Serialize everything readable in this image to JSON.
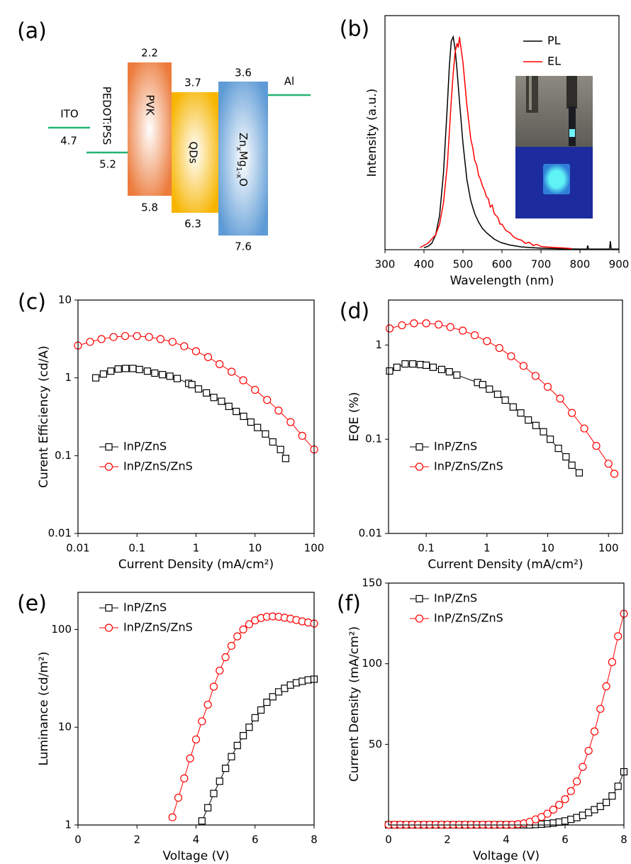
{
  "chart_data": [
    {
      "type": "energy-diagram",
      "panel_label": "(a)",
      "line_color": "#22b573",
      "layers": [
        {
          "name": "ITO",
          "level": 4.7
        },
        {
          "name": "PEDOT:PSS",
          "level": 5.2
        },
        {
          "name": "PVK",
          "top": 2.2,
          "bottom": 5.8,
          "color": "#ec7b3c"
        },
        {
          "name": "QDs",
          "top": 3.7,
          "bottom": 6.3,
          "color": "#f7b500"
        },
        {
          "name": [
            "Zn",
            "x",
            "Mg",
            "1-x",
            "O"
          ],
          "top": 3.6,
          "bottom": 7.6,
          "color": "#5e9bd6"
        },
        {
          "name": "Al"
        }
      ]
    },
    {
      "type": "line",
      "panel_label": "(b)",
      "xlabel": "Wavelength (nm)",
      "ylabel": "Intensity (a.u.)",
      "xlim": [
        300,
        900
      ],
      "xticks": [
        300,
        400,
        500,
        600,
        700,
        800,
        900
      ],
      "ylim": [
        0,
        1.1
      ],
      "legend": "upper right",
      "series": [
        {
          "name": "PL",
          "color": "#000000",
          "x": [
            400,
            410,
            420,
            430,
            440,
            450,
            460,
            465,
            470,
            475,
            480,
            485,
            490,
            500,
            510,
            520,
            530,
            540,
            550,
            560,
            570,
            580,
            590,
            600,
            620,
            650,
            700,
            750,
            800,
            818,
            820,
            822,
            850,
            876,
            878,
            880,
            882,
            900
          ],
          "values": [
            0.01,
            0.015,
            0.03,
            0.07,
            0.16,
            0.36,
            0.68,
            0.86,
            0.98,
            1.0,
            0.94,
            0.84,
            0.72,
            0.5,
            0.33,
            0.23,
            0.17,
            0.13,
            0.1,
            0.08,
            0.065,
            0.05,
            0.04,
            0.032,
            0.022,
            0.013,
            0.007,
            0.004,
            0.003,
            0.003,
            0.02,
            0.003,
            0.003,
            0.003,
            0.04,
            0.003,
            0.003,
            0.003
          ]
        },
        {
          "name": "EL",
          "color": "#ff0000",
          "x": [
            390,
            400,
            410,
            420,
            430,
            440,
            450,
            460,
            465,
            470,
            475,
            480,
            485,
            488,
            491,
            494,
            497,
            500,
            505,
            510,
            515,
            520,
            525,
            530,
            535,
            540,
            545,
            550,
            555,
            560,
            565,
            570,
            575,
            580,
            585,
            590,
            595,
            600,
            610,
            620,
            630,
            640,
            650,
            660,
            670,
            680,
            690,
            700,
            720,
            740,
            760,
            780
          ],
          "values": [
            0.01,
            0.02,
            0.03,
            0.05,
            0.07,
            0.12,
            0.22,
            0.4,
            0.55,
            0.7,
            0.83,
            0.93,
            0.97,
            0.95,
            1.0,
            0.96,
            0.92,
            0.88,
            0.78,
            0.68,
            0.6,
            0.52,
            0.48,
            0.42,
            0.4,
            0.35,
            0.33,
            0.3,
            0.28,
            0.25,
            0.24,
            0.2,
            0.21,
            0.17,
            0.16,
            0.15,
            0.12,
            0.12,
            0.09,
            0.08,
            0.06,
            0.05,
            0.045,
            0.03,
            0.035,
            0.02,
            0.025,
            0.015,
            0.012,
            0.01,
            0.008,
            0.005
          ]
        }
      ]
    },
    {
      "type": "line",
      "panel_label": "(c)",
      "xlabel": "Current Density (mA/cm²)",
      "ylabel": "Curent Efficiency (cd/A)",
      "xlog": true,
      "ylog": true,
      "xlim": [
        0.01,
        100
      ],
      "xticks": [
        0.01,
        0.1,
        1,
        10,
        100
      ],
      "ylim": [
        0.01,
        10
      ],
      "yticks": [
        0.01,
        0.1,
        1,
        10
      ],
      "legend": "lower left",
      "series": [
        {
          "name": "InP/ZnS",
          "color": "#000000",
          "marker": "square",
          "x": [
            0.02,
            0.027,
            0.036,
            0.048,
            0.064,
            0.085,
            0.11,
            0.15,
            0.2,
            0.27,
            0.36,
            0.48,
            0.75,
            0.85,
            1.1,
            1.5,
            2,
            2.7,
            3.6,
            4.8,
            6.4,
            8.5,
            11,
            15,
            20,
            27,
            33
          ],
          "values": [
            1.0,
            1.12,
            1.22,
            1.3,
            1.32,
            1.32,
            1.28,
            1.22,
            1.15,
            1.1,
            1.05,
            0.98,
            0.85,
            0.82,
            0.72,
            0.64,
            0.56,
            0.5,
            0.43,
            0.37,
            0.32,
            0.27,
            0.23,
            0.19,
            0.15,
            0.12,
            0.092
          ]
        },
        {
          "name": "InP/ZnS/ZnS",
          "color": "#ff0000",
          "marker": "circle",
          "x": [
            0.01,
            0.016,
            0.025,
            0.04,
            0.063,
            0.1,
            0.16,
            0.25,
            0.4,
            0.63,
            1,
            1.6,
            2.5,
            4,
            6.3,
            10,
            16,
            25,
            40,
            63,
            100
          ],
          "values": [
            2.6,
            2.9,
            3.15,
            3.35,
            3.45,
            3.45,
            3.35,
            3.15,
            2.9,
            2.55,
            2.2,
            1.85,
            1.5,
            1.2,
            0.93,
            0.7,
            0.52,
            0.38,
            0.27,
            0.18,
            0.12
          ]
        }
      ]
    },
    {
      "type": "line",
      "panel_label": "(d)",
      "xlabel": "Current Density (mA/cm²)",
      "ylabel": "EQE (%)",
      "xlog": true,
      "ylog": true,
      "xlim": [
        0.024,
        170
      ],
      "xticks": [
        0.1,
        1,
        10,
        100
      ],
      "ylim": [
        0.01,
        3
      ],
      "yticks": [
        0.01,
        0.1,
        1
      ],
      "legend": "lower left",
      "series": [
        {
          "name": "InP/ZnS",
          "color": "#000000",
          "marker": "square",
          "x": [
            0.025,
            0.033,
            0.045,
            0.06,
            0.08,
            0.1,
            0.13,
            0.18,
            0.24,
            0.32,
            0.7,
            0.85,
            1.1,
            1.5,
            2,
            2.7,
            3.6,
            4.8,
            6.4,
            8.5,
            11,
            15,
            20,
            25,
            33
          ],
          "values": [
            0.53,
            0.58,
            0.63,
            0.63,
            0.62,
            0.61,
            0.58,
            0.55,
            0.52,
            0.48,
            0.4,
            0.38,
            0.34,
            0.3,
            0.26,
            0.22,
            0.19,
            0.16,
            0.14,
            0.12,
            0.1,
            0.08,
            0.065,
            0.053,
            0.044
          ]
        },
        {
          "name": "InP/ZnS/ZnS",
          "color": "#ff0000",
          "marker": "circle",
          "x": [
            0.025,
            0.04,
            0.063,
            0.1,
            0.16,
            0.25,
            0.4,
            0.63,
            1,
            1.6,
            2.5,
            4,
            6.3,
            10,
            16,
            25,
            40,
            63,
            100,
            125
          ],
          "values": [
            1.5,
            1.62,
            1.7,
            1.7,
            1.65,
            1.55,
            1.42,
            1.27,
            1.1,
            0.93,
            0.76,
            0.6,
            0.47,
            0.36,
            0.27,
            0.19,
            0.13,
            0.085,
            0.055,
            0.043
          ]
        }
      ]
    },
    {
      "type": "line",
      "panel_label": "(e)",
      "xlabel": "Voltage (V)",
      "ylabel": "Luminance (cd/m²)",
      "ylog": true,
      "xlim": [
        0,
        8
      ],
      "xticks": [
        0,
        2,
        4,
        6,
        8
      ],
      "ylim": [
        1,
        240
      ],
      "yticks": [
        1,
        10,
        100
      ],
      "legend": "upper left",
      "series": [
        {
          "name": "InP/ZnS",
          "color": "#000000",
          "marker": "square",
          "x": [
            4.2,
            4.4,
            4.6,
            4.8,
            5.0,
            5.2,
            5.4,
            5.6,
            5.8,
            6.0,
            6.2,
            6.4,
            6.6,
            6.8,
            7.0,
            7.2,
            7.4,
            7.6,
            7.8,
            8.0
          ],
          "values": [
            1.1,
            1.5,
            2.1,
            2.8,
            3.8,
            5,
            6.5,
            8.2,
            10,
            12.5,
            15,
            18,
            20.5,
            23,
            25,
            27,
            28.5,
            29.5,
            30.5,
            31
          ]
        },
        {
          "name": "InP/ZnS/ZnS",
          "color": "#ff0000",
          "marker": "circle",
          "x": [
            3.2,
            3.4,
            3.6,
            3.8,
            4.0,
            4.2,
            4.4,
            4.6,
            4.8,
            5.0,
            5.2,
            5.4,
            5.6,
            5.8,
            6.0,
            6.2,
            6.4,
            6.6,
            6.8,
            7.0,
            7.2,
            7.4,
            7.6,
            7.8,
            8.0
          ],
          "values": [
            1.2,
            1.9,
            3,
            4.8,
            7.5,
            11.5,
            17,
            26,
            38,
            52,
            68,
            85,
            100,
            113,
            124,
            131,
            135,
            136,
            135,
            132,
            129,
            125,
            121,
            118,
            115
          ]
        }
      ]
    },
    {
      "type": "line",
      "panel_label": "(f)",
      "xlabel": "Voltage (V)",
      "ylabel": "Current Density (mA/cm²)",
      "xlim": [
        0,
        8
      ],
      "xticks": [
        0,
        2,
        4,
        6,
        8
      ],
      "ylim": [
        0,
        150
      ],
      "yticks": [
        50,
        100,
        150
      ],
      "legend": "upper left",
      "series": [
        {
          "name": "InP/ZnS",
          "color": "#000000",
          "marker": "square",
          "x": [
            0,
            0.2,
            0.4,
            0.6,
            0.8,
            1.0,
            1.2,
            1.4,
            1.6,
            1.8,
            2.0,
            2.2,
            2.4,
            2.6,
            2.8,
            3.0,
            3.2,
            3.4,
            3.6,
            3.8,
            4.0,
            4.2,
            4.4,
            4.6,
            4.8,
            5.0,
            5.2,
            5.4,
            5.6,
            5.8,
            6.0,
            6.2,
            6.4,
            6.6,
            6.8,
            7.0,
            7.2,
            7.4,
            7.6,
            7.8,
            8.0
          ],
          "values": [
            0.1,
            0.1,
            0.1,
            0.1,
            0.1,
            0.1,
            0.1,
            0.1,
            0.1,
            0.1,
            0.1,
            0.1,
            0.1,
            0.1,
            0.1,
            0.1,
            0.1,
            0.1,
            0.1,
            0.1,
            0.1,
            0.1,
            0.1,
            0.1,
            0.1,
            0.3,
            0.5,
            0.8,
            1.2,
            1.8,
            2.5,
            3.5,
            4.6,
            6,
            7.7,
            9.5,
            11.5,
            14,
            18,
            24,
            33
          ]
        },
        {
          "name": "InP/ZnS/ZnS",
          "color": "#ff0000",
          "marker": "circle",
          "x": [
            0,
            0.2,
            0.4,
            0.6,
            0.8,
            1.0,
            1.2,
            1.4,
            1.6,
            1.8,
            2.0,
            2.2,
            2.4,
            2.6,
            2.8,
            3.0,
            3.2,
            3.4,
            3.6,
            3.8,
            4.0,
            4.2,
            4.4,
            4.6,
            4.8,
            5.0,
            5.2,
            5.4,
            5.6,
            5.8,
            6.0,
            6.2,
            6.4,
            6.6,
            6.8,
            7.0,
            7.2,
            7.4,
            7.6,
            7.8,
            8.0
          ],
          "values": [
            0.2,
            0.2,
            0.2,
            0.2,
            0.2,
            0.2,
            0.2,
            0.2,
            0.2,
            0.2,
            0.2,
            0.2,
            0.2,
            0.2,
            0.2,
            0.2,
            0.2,
            0.2,
            0.2,
            0.2,
            0.2,
            0.2,
            0.5,
            1,
            2,
            3.5,
            5,
            7,
            9.5,
            12.5,
            16,
            21,
            27,
            36,
            46,
            58,
            72,
            86,
            101,
            117,
            131
          ]
        }
      ]
    }
  ]
}
